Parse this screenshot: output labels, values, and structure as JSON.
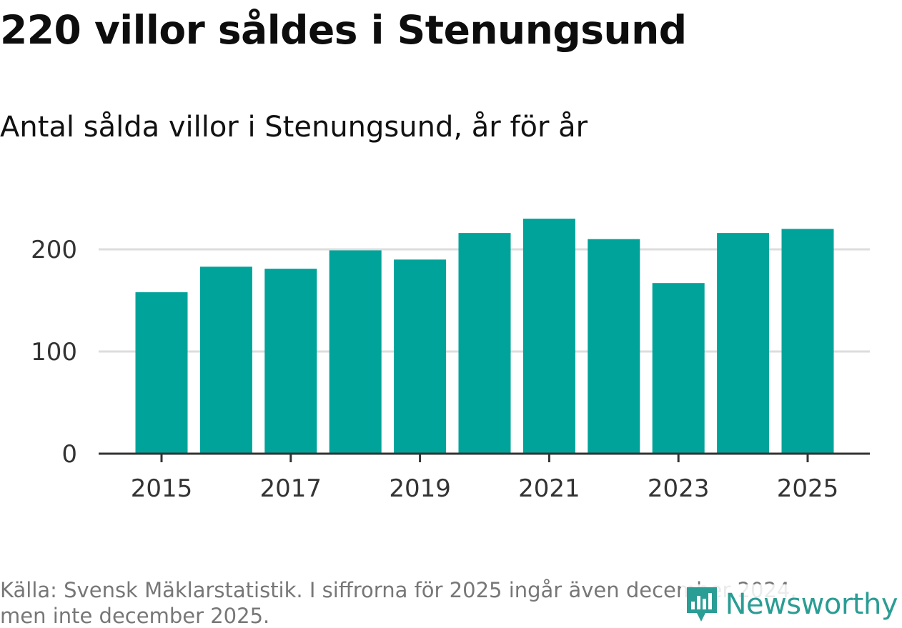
{
  "header": {
    "title": "220 villor såldes i Stenungsund",
    "subtitle": "Antal sålda villor i Stenungsund, år för år"
  },
  "footer": {
    "source_line1": "Källa: Svensk Mäklarstatistik. I siffrorna för 2025 ingår även december 2024,",
    "source_line2": "men inte december 2025.",
    "brand": "Newsworthy"
  },
  "colors": {
    "bar": "#00a39a",
    "grid": "#dddddd",
    "axis": "#333333",
    "brand": "#2a9d94"
  },
  "chart_data": {
    "type": "bar",
    "title": "220 villor såldes i Stenungsund",
    "subtitle": "Antal sålda villor i Stenungsund, år för år",
    "categories": [
      "2015",
      "2016",
      "2017",
      "2018",
      "2019",
      "2020",
      "2021",
      "2022",
      "2023",
      "2024",
      "2025"
    ],
    "values": [
      158,
      183,
      181,
      199,
      190,
      216,
      230,
      210,
      167,
      216,
      220
    ],
    "x_tick_labels": [
      "2015",
      "2017",
      "2019",
      "2021",
      "2023",
      "2025"
    ],
    "y_ticks": [
      0,
      100,
      200
    ],
    "ylim": [
      0,
      230
    ],
    "xlabel": "",
    "ylabel": "",
    "grid": true
  }
}
